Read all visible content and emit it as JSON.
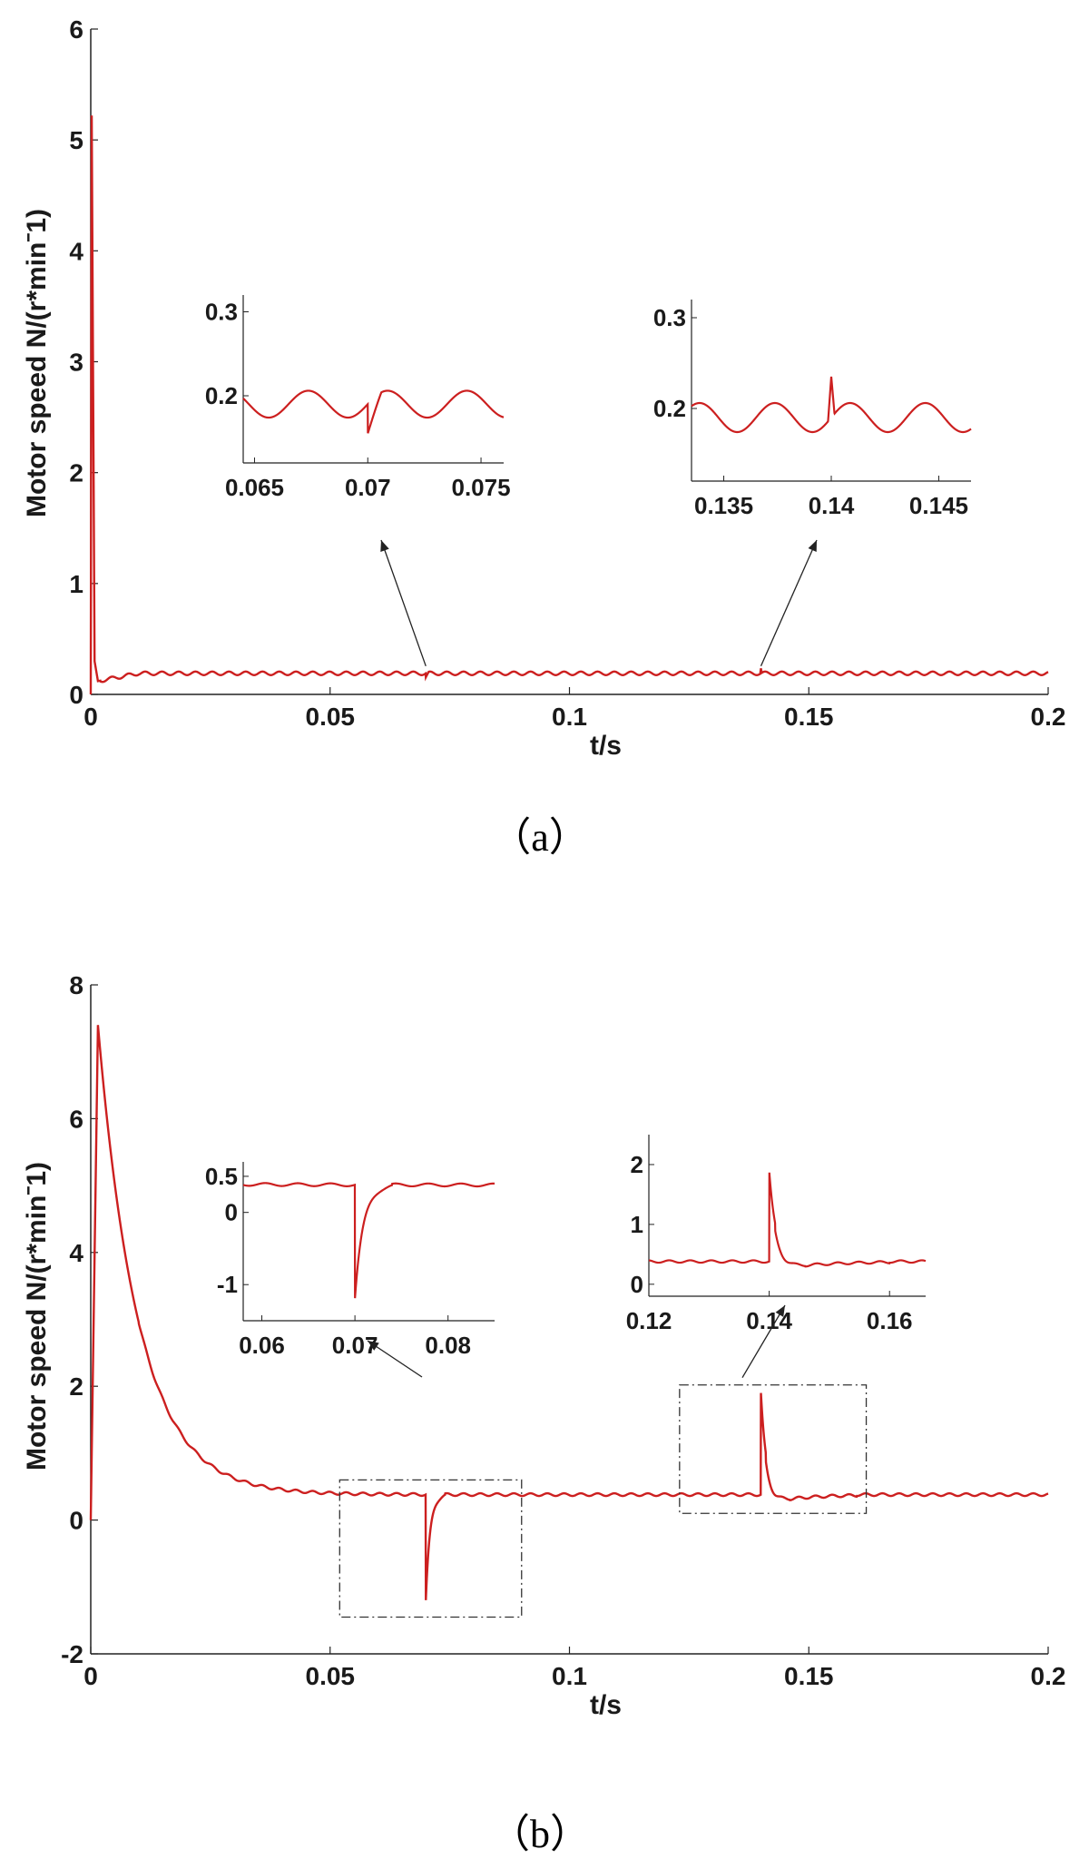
{
  "chart_data": [
    {
      "type": "line",
      "panel": "a",
      "caption": "（a）",
      "xlabel": "t/s",
      "ylabel": "Motor speed N/(r*minˉ1)",
      "xlim": [
        0,
        0.2
      ],
      "ylim": [
        0,
        6
      ],
      "xticks": [
        "0",
        "0.05",
        "0.1",
        "0.15",
        "0.2"
      ],
      "yticks": [
        "0",
        "1",
        "2",
        "3",
        "4",
        "5",
        "6"
      ],
      "series_color": "#cc1f1f",
      "series": [
        {
          "description": "initial spike to about 5.2 then settles near 0.19 with small ripple",
          "peak": {
            "x": 0.0002,
            "y": 5.22
          },
          "steady_value": 0.19,
          "ripple_amplitude": 0.016,
          "ripple_period": 0.0035,
          "x": [
            0,
            0.0002,
            0.0006,
            0.001,
            0.002,
            0.004,
            0.006,
            0.008,
            0.01,
            0.2
          ],
          "y": [
            0.0,
            5.22,
            1.5,
            0.2,
            0.12,
            0.14,
            0.16,
            0.18,
            0.19,
            0.19
          ]
        }
      ],
      "insets": [
        {
          "name": "inset-a1",
          "xlim": [
            0.0645,
            0.076
          ],
          "ylim": [
            0.12,
            0.32
          ],
          "xticks": [
            "0.065",
            "0.07",
            "0.075"
          ],
          "yticks": [
            "0.2",
            "0.3"
          ],
          "event": {
            "x": 0.07,
            "type": "dip",
            "y": 0.155
          },
          "arrow_target_x": 0.07,
          "arrow_target_y": 0.19
        },
        {
          "name": "inset-a2",
          "xlim": [
            0.1335,
            0.1465
          ],
          "ylim": [
            0.12,
            0.32
          ],
          "xticks": [
            "0.135",
            "0.14",
            "0.145"
          ],
          "yticks": [
            "0.2",
            "0.3"
          ],
          "event": {
            "x": 0.14,
            "type": "spike",
            "y": 0.235
          },
          "arrow_target_x": 0.14,
          "arrow_target_y": 0.19
        }
      ]
    },
    {
      "type": "line",
      "panel": "b",
      "caption": "（b）",
      "xlabel": "t/s",
      "ylabel": "Motor speed N/(r*minˉ1)",
      "xlim": [
        0,
        0.2
      ],
      "ylim": [
        -2,
        8
      ],
      "xticks": [
        "0",
        "0.05",
        "0.1",
        "0.15",
        "0.2"
      ],
      "yticks": [
        "-2",
        "0",
        "2",
        "4",
        "6",
        "8"
      ],
      "series_color": "#cc1f1f",
      "series": [
        {
          "description": "rise to about 7.4 then slow decay to about 0.38, dip at 0.07 and spike at 0.14",
          "peak": {
            "x": 0.0015,
            "y": 7.4
          },
          "steady_value": 0.38,
          "dip": {
            "x": 0.07,
            "y": -1.2
          },
          "spike": {
            "x": 0.14,
            "y": 1.9
          },
          "x": [
            0,
            0.0005,
            0.0015,
            0.003,
            0.005,
            0.01,
            0.02,
            0.03,
            0.05,
            0.0699,
            0.07,
            0.071,
            0.073,
            0.08,
            0.1399,
            0.14,
            0.1405,
            0.142,
            0.145,
            0.16,
            0.2
          ],
          "y": [
            0.0,
            4.5,
            7.4,
            5.0,
            3.0,
            1.7,
            0.85,
            0.55,
            0.42,
            0.4,
            -1.2,
            -0.2,
            0.35,
            0.42,
            0.38,
            1.9,
            1.4,
            0.3,
            0.25,
            0.32,
            0.38
          ]
        }
      ],
      "insets": [
        {
          "name": "inset-b1",
          "xlim": [
            0.058,
            0.085
          ],
          "ylim": [
            -1.5,
            0.7
          ],
          "xticks": [
            "0.06",
            "0.07",
            "0.08"
          ],
          "yticks": [
            "-1",
            "0",
            "0.5"
          ],
          "event": {
            "x": 0.07,
            "type": "dip",
            "y": -1.2
          },
          "zoom_box": {
            "xlim": [
              0.052,
              0.09
            ],
            "ylim": [
              -1.45,
              0.6
            ]
          }
        },
        {
          "name": "inset-b2",
          "xlim": [
            0.12,
            0.166
          ],
          "ylim": [
            -0.2,
            2.5
          ],
          "xticks": [
            "0.12",
            "0.14",
            "0.16"
          ],
          "yticks": [
            "0",
            "1",
            "2"
          ],
          "event": {
            "x": 0.14,
            "type": "spike",
            "y": 1.9
          },
          "zoom_box": {
            "xlim": [
              0.123,
              0.162
            ],
            "ylim": [
              0.1,
              2.02
            ]
          }
        }
      ]
    }
  ]
}
